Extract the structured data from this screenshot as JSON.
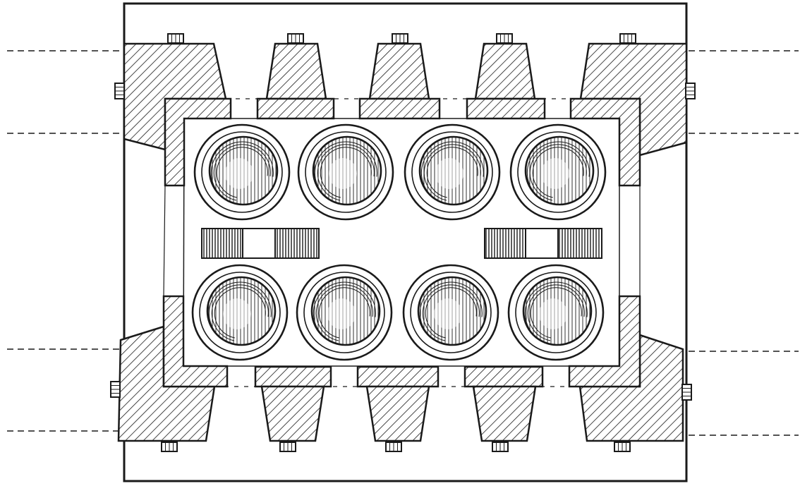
{
  "figure": {
    "kind": "engraved technical plan view",
    "ink_color": "#1a1a1a",
    "paper_color": "#ffffff",
    "hatch": "diagonal",
    "pot_count_per_row": 4,
    "pot_rows": 2,
    "wedge_count_per_side": 5,
    "reference_lines_per_side": 4,
    "reference_line_style": "dashed"
  }
}
